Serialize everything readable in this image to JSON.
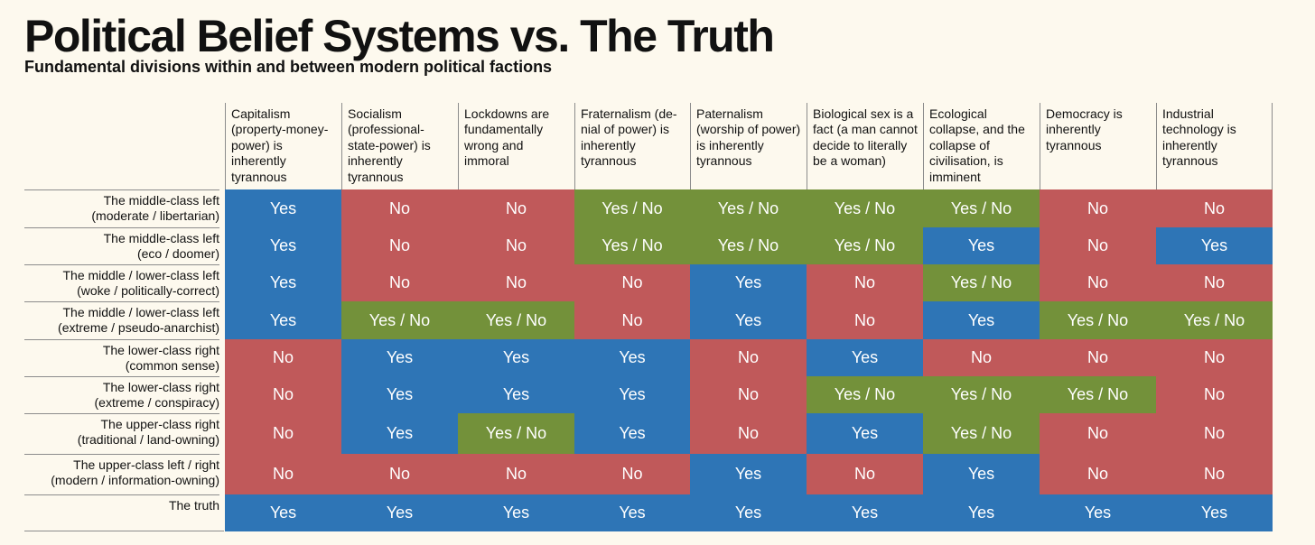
{
  "title": "Political Belief Systems vs. The Truth",
  "subtitle": "Fundamental divisions within and between modern political factions",
  "colors": {
    "Yes": "#2e75b6",
    "No": "#c0595a",
    "Yes / No": "#73913a",
    "background": "#fdf9ee"
  },
  "chart_data": {
    "type": "table",
    "title": "Political Belief Systems vs. The Truth",
    "subtitle": "Fundamental divisions within and between modern political factions",
    "columns": [
      "Capitalism (property-money-power) is inherently tyrannous",
      "Socialism (professional-state-power) is inherently tyrannous",
      "Lockdowns are fundamentally wrong and immoral",
      "Fraternalism (de-nial of power) is inherently tyrannous",
      "Paternalism (worship of power) is inherently tyrannous",
      "Biological sex is a fact (a man cannot decide to literally be a woman)",
      "Ecological collapse, and the collapse of civilisation, is imminent",
      "Democracy is inherently tyrannous",
      "Industrial technology is inherently tyrannous"
    ],
    "rows": [
      {
        "label": "The middle-class left\n(moderate / libertarian)",
        "values": [
          "Yes",
          "No",
          "No",
          "Yes / No",
          "Yes / No",
          "Yes / No",
          "Yes / No",
          "No",
          "No"
        ]
      },
      {
        "label": "The middle-class left\n(eco / doomer)",
        "values": [
          "Yes",
          "No",
          "No",
          "Yes / No",
          "Yes / No",
          "Yes / No",
          "Yes",
          "No",
          "Yes"
        ]
      },
      {
        "label": "The middle / lower-class left\n(woke / politically-correct)",
        "values": [
          "Yes",
          "No",
          "No",
          "No",
          "Yes",
          "No",
          "Yes / No",
          "No",
          "No"
        ]
      },
      {
        "label": "The middle / lower-class left\n(extreme / pseudo-anarchist)",
        "values": [
          "Yes",
          "Yes / No",
          "Yes / No",
          "No",
          "Yes",
          "No",
          "Yes",
          "Yes / No",
          "Yes / No"
        ]
      },
      {
        "label": "The lower-class right\n(common sense)",
        "values": [
          "No",
          "Yes",
          "Yes",
          "Yes",
          "No",
          "Yes",
          "No",
          "No",
          "No"
        ]
      },
      {
        "label": "The lower-class right\n(extreme / conspiracy)",
        "values": [
          "No",
          "Yes",
          "Yes",
          "Yes",
          "No",
          "Yes / No",
          "Yes / No",
          "Yes / No",
          "No"
        ]
      },
      {
        "label": "The upper-class right\n(traditional / land-owning)",
        "values": [
          "No",
          "Yes",
          "Yes / No",
          "Yes",
          "No",
          "Yes",
          "Yes / No",
          "No",
          "No"
        ]
      },
      {
        "label": "The upper-class left / right\n(modern / information-owning)",
        "values": [
          "No",
          "No",
          "No",
          "No",
          "Yes",
          "No",
          "Yes",
          "No",
          "No"
        ]
      },
      {
        "label": "The truth",
        "values": [
          "Yes",
          "Yes",
          "Yes",
          "Yes",
          "Yes",
          "Yes",
          "Yes",
          "Yes",
          "Yes"
        ]
      }
    ]
  }
}
